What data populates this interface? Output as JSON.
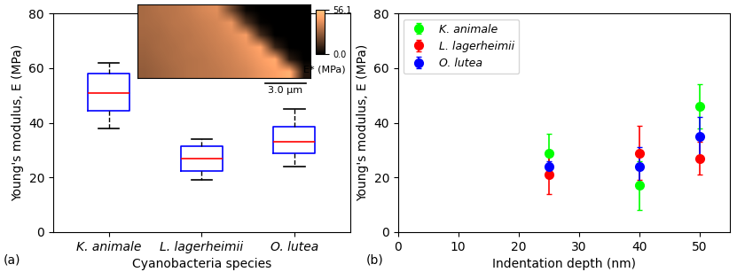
{
  "chart_data": [
    {
      "type": "box",
      "annotations": [
        "(a)"
      ],
      "x_label": "Cyanobacteria species",
      "y_label": "Young's modulus, E (MPa)",
      "categories": [
        "K. animale",
        "L. lagerheimii",
        "O. lutea"
      ],
      "boxes": [
        {
          "whisker_low": 38,
          "q1": 44.5,
          "median": 51,
          "q3": 58,
          "whisker_high": 62
        },
        {
          "whisker_low": 19,
          "q1": 22.5,
          "median": 27,
          "q3": 31.5,
          "whisker_high": 34
        },
        {
          "whisker_low": 24,
          "q1": 29,
          "median": 33,
          "q3": 38.5,
          "whisker_high": 45
        }
      ],
      "color": "#0000ff",
      "ylim": [
        0,
        80
      ],
      "yticks": [
        0,
        20,
        40,
        60,
        80
      ],
      "inset": {
        "type": "heatmap",
        "cells": [
          [
            30,
            32,
            33,
            35,
            38,
            40,
            20,
            2,
            0,
            0,
            0,
            0
          ],
          [
            30,
            31,
            33,
            34,
            36,
            38,
            42,
            15,
            1,
            0,
            0,
            0
          ],
          [
            29,
            30,
            32,
            33,
            35,
            37,
            40,
            44,
            12,
            0,
            0,
            0
          ],
          [
            28,
            30,
            31,
            33,
            34,
            36,
            38,
            42,
            46,
            10,
            0,
            0
          ],
          [
            27,
            29,
            31,
            32,
            33,
            35,
            37,
            40,
            44,
            48,
            8,
            0
          ],
          [
            26,
            28,
            30,
            32,
            33,
            34,
            36,
            38,
            42,
            45,
            50,
            6
          ]
        ],
        "colorbar_range": [
          0.0,
          56.1
        ],
        "colorbar_ticks": [
          56.1,
          0.0
        ],
        "colorbar_label": "E* (MPa)",
        "scale_bar": "3.0 μm"
      }
    },
    {
      "type": "scatter",
      "annotations": [
        "(b)"
      ],
      "x_label": "Indentation depth (nm)",
      "y_label": "Young's modulus, E (MPa)",
      "x": [
        25,
        40,
        50
      ],
      "series": [
        {
          "name": "K. animale",
          "color": "#00ff00",
          "marker": "o",
          "values": [
            29,
            17,
            46
          ],
          "errors": [
            7,
            9,
            8
          ]
        },
        {
          "name": "L. lagerheimii",
          "color": "#ff0000",
          "marker": "o",
          "values": [
            21,
            29,
            27
          ],
          "errors": [
            7,
            10,
            6
          ]
        },
        {
          "name": "O. lutea",
          "color": "#0000ff",
          "marker": "o",
          "values": [
            24,
            24,
            35
          ],
          "errors": [
            2,
            7,
            7
          ]
        }
      ],
      "xlim": [
        0,
        55
      ],
      "xticks": [
        0,
        10,
        20,
        30,
        40,
        50
      ],
      "ylim": [
        0,
        80
      ],
      "yticks": [
        0,
        20,
        40,
        60,
        80
      ],
      "legend": "upper left"
    }
  ]
}
